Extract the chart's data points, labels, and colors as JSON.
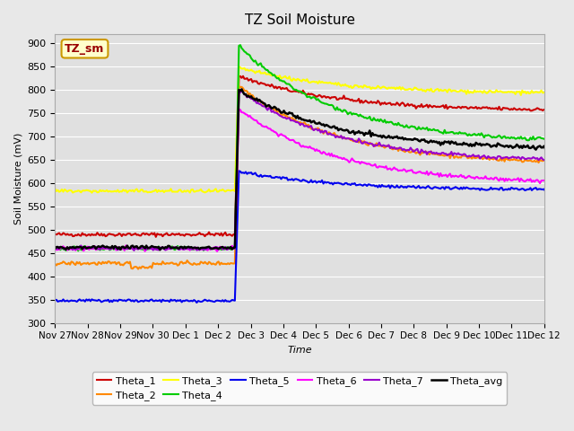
{
  "title": "TZ Soil Moisture",
  "xlabel": "Time",
  "ylabel": "Soil Moisture (mV)",
  "ylim": [
    300,
    920
  ],
  "yticks": [
    300,
    350,
    400,
    450,
    500,
    550,
    600,
    650,
    700,
    750,
    800,
    850,
    900
  ],
  "xtick_labels": [
    "Nov 27",
    "Nov 28",
    "Nov 29",
    "Nov 30",
    "Dec 1",
    "Dec 2",
    "Dec 3",
    "Dec 4",
    "Dec 5",
    "Dec 6",
    "Dec 7",
    "Dec 8",
    "Dec 9",
    "Dec 10",
    "Dec 11",
    "Dec 12"
  ],
  "series_order": [
    "Theta_1",
    "Theta_2",
    "Theta_3",
    "Theta_4",
    "Theta_5",
    "Theta_6",
    "Theta_7",
    "Theta_avg"
  ],
  "series": {
    "Theta_1": {
      "color": "#cc0000",
      "pre": 490,
      "peak": 830,
      "post": 755
    },
    "Theta_2": {
      "color": "#ff8800",
      "pre": 428,
      "peak": 810,
      "post": 640
    },
    "Theta_3": {
      "color": "#ffff00",
      "pre": 583,
      "peak": 848,
      "post": 792
    },
    "Theta_4": {
      "color": "#00cc00",
      "pre": 460,
      "peak": 895,
      "post": 685
    },
    "Theta_5": {
      "color": "#0000ee",
      "pre": 348,
      "peak": 625,
      "post": 585
    },
    "Theta_6": {
      "color": "#ff00ff",
      "pre": 460,
      "peak": 760,
      "post": 598
    },
    "Theta_7": {
      "color": "#9900cc",
      "pre": 460,
      "peak": 800,
      "post": 645
    },
    "Theta_avg": {
      "color": "#000000",
      "pre": 462,
      "peak": 800,
      "post": 672
    }
  },
  "bg_color": "#e8e8e8",
  "ax_bg_color": "#e0e0e0",
  "label_box_color": "#ffffcc",
  "label_box_edge": "#cc9900",
  "label_text": "TZ_sm",
  "label_text_color": "#990000",
  "event_day": 5.5,
  "n_days": 16
}
